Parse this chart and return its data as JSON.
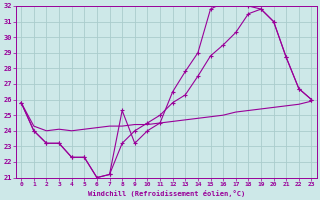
{
  "xlabel": "Windchill (Refroidissement éolien,°C)",
  "bg_color": "#cde8e8",
  "line_color": "#990099",
  "grid_color": "#aacccc",
  "xmin": 0,
  "xmax": 23,
  "ymin": 21,
  "ymax": 32,
  "line1_x": [
    0,
    1,
    2,
    3,
    4,
    5,
    6,
    7,
    8,
    9,
    10,
    11,
    12,
    13,
    14,
    15,
    16,
    17,
    18,
    19,
    20,
    21,
    22,
    23
  ],
  "line1_y": [
    25.8,
    24.0,
    23.2,
    23.2,
    22.3,
    22.3,
    21.0,
    21.2,
    25.3,
    23.2,
    24.0,
    24.5,
    26.5,
    27.8,
    29.0,
    31.8,
    32.2,
    32.2,
    32.0,
    31.8,
    31.0,
    28.7,
    26.7,
    26.0
  ],
  "line2_x": [
    0,
    1,
    2,
    3,
    4,
    5,
    6,
    7,
    8,
    9,
    10,
    11,
    12,
    13,
    14,
    15,
    16,
    17,
    18,
    19,
    20,
    21,
    22,
    23
  ],
  "line2_y": [
    25.8,
    24.0,
    23.2,
    23.2,
    22.3,
    22.3,
    21.0,
    21.2,
    23.2,
    24.0,
    24.5,
    25.0,
    25.8,
    26.3,
    27.5,
    28.8,
    29.5,
    30.3,
    31.5,
    31.8,
    31.0,
    28.7,
    26.7,
    26.0
  ],
  "line3_x": [
    0,
    1,
    2,
    3,
    4,
    5,
    6,
    7,
    8,
    9,
    10,
    11,
    12,
    13,
    14,
    15,
    16,
    17,
    18,
    19,
    20,
    21,
    22,
    23
  ],
  "line3_y": [
    25.8,
    24.3,
    24.0,
    24.1,
    24.0,
    24.1,
    24.2,
    24.3,
    24.3,
    24.4,
    24.4,
    24.5,
    24.6,
    24.7,
    24.8,
    24.9,
    25.0,
    25.2,
    25.3,
    25.4,
    25.5,
    25.6,
    25.7,
    25.9
  ]
}
